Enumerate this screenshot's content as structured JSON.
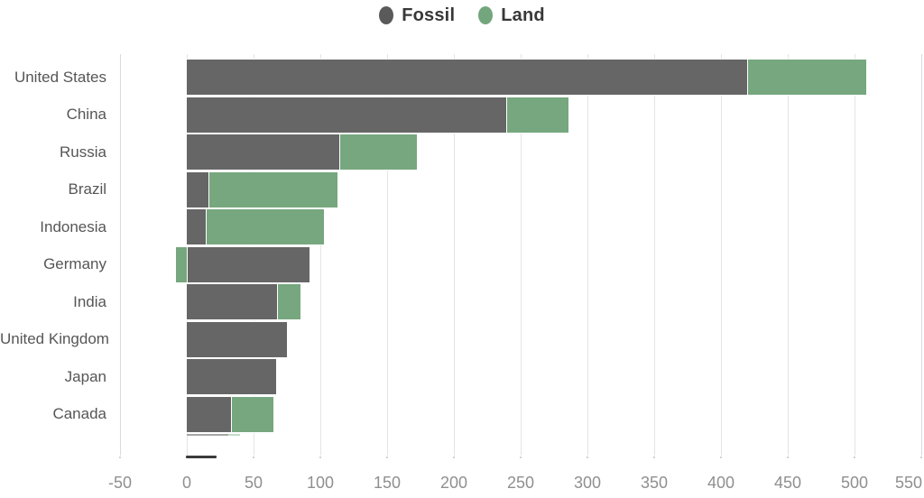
{
  "legend": {
    "items": [
      {
        "label": "Fossil",
        "color": "#5a5a5a"
      },
      {
        "label": "Land",
        "color": "#74a67e"
      }
    ]
  },
  "chart_data": {
    "type": "bar",
    "orientation": "horizontal",
    "stacked": true,
    "title": "",
    "xlabel": "",
    "ylabel": "",
    "xlim": [
      -50,
      550
    ],
    "grid": true,
    "legend_position": "top-center",
    "categories": [
      "United States",
      "China",
      "Russia",
      "Brazil",
      "Indonesia",
      "Germany",
      "India",
      "United Kingdom",
      "Japan",
      "Canada"
    ],
    "series": [
      {
        "name": "Fossil",
        "color": "#666666",
        "values": [
          420,
          240,
          115,
          17,
          15,
          92,
          68,
          75,
          67,
          34
        ]
      },
      {
        "name": "Land",
        "color": "#76a77e",
        "values": [
          89,
          46,
          57,
          96,
          88,
          -8,
          17,
          0,
          0,
          31
        ]
      }
    ],
    "x_ticks": [
      "-50",
      "0",
      "50",
      "100",
      "150",
      "200",
      "250",
      "300",
      "350",
      "400",
      "450",
      "500",
      "550"
    ],
    "partial_row": {
      "fossil": 31,
      "land": 9,
      "fossil_color": "#a6a6a6",
      "land_color": "#c2dcc8"
    }
  }
}
